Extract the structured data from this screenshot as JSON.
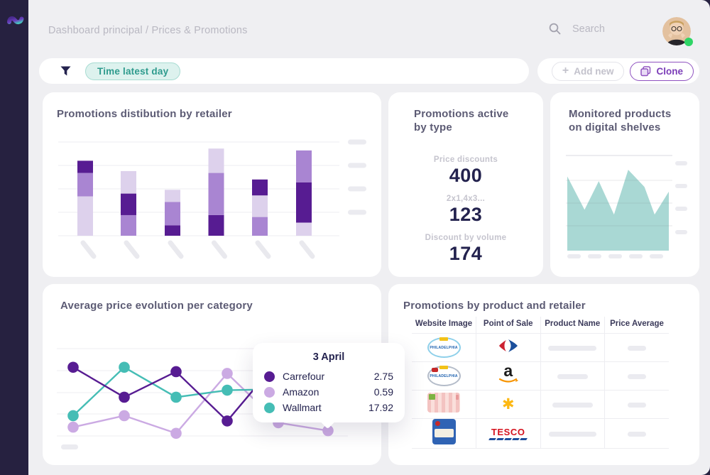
{
  "header": {
    "breadcrumb": "Dashboard principal / Prices & Promotions",
    "search_label": "Search"
  },
  "filter_bar": {
    "chip_label": "Time latest day"
  },
  "actions": {
    "add_new_label": "Add new",
    "clone_label": "Clone"
  },
  "colors": {
    "sidebar_bg": "#262140",
    "content_bg": "#efeff2",
    "dark_purple": "#571c92",
    "medium_purple": "#a985d2",
    "light_purple": "#ddd1ec",
    "amazon_line": "#cbaae3",
    "teal_line": "#45bdb5",
    "area_teal": "#a9d8d4",
    "accent_purple": "#7b3db8",
    "chip_bg": "#ddf2ee",
    "chip_border": "#a8dcd2",
    "chip_text": "#2e9b8d",
    "navy_text": "#23224e",
    "skeleton": "#ebebf0",
    "grid": "#f1f0f4",
    "status_green": "#2fd566"
  },
  "cards": {
    "bar_card": {
      "title": "Promotions distibution by retailer"
    },
    "kpi_card": {
      "title": "Promotions active\nby type",
      "metrics": [
        {
          "label": "Price discounts",
          "value": "400"
        },
        {
          "label": "2x1,4x3...",
          "value": "123"
        },
        {
          "label": "Discount by volume",
          "value": "174"
        }
      ]
    },
    "area_card": {
      "title": "Monitored products\non digital shelves"
    },
    "line_card": {
      "title": "Average price evolution per category"
    },
    "table_card": {
      "title": "Promotions by product and retailer"
    }
  },
  "chart_data": [
    {
      "type": "bar",
      "stacked": true,
      "title": "Promotions distibution by retailer",
      "ylim": [
        0,
        100
      ],
      "x_axis_labels": "skeleton-placeholders",
      "y_axis_labels": "skeleton-placeholders",
      "tone_colors": {
        "dark": "#571c92",
        "medium": "#a985d2",
        "light": "#ddd1ec"
      },
      "bars": [
        {
          "segments": [
            {
              "tone": "light",
              "value": 42
            },
            {
              "tone": "medium",
              "value": 25
            },
            {
              "tone": "dark",
              "value": 13
            }
          ]
        },
        {
          "segments": [
            {
              "tone": "medium",
              "value": 22
            },
            {
              "tone": "dark",
              "value": 23
            },
            {
              "tone": "light",
              "value": 24
            }
          ]
        },
        {
          "segments": [
            {
              "tone": "dark",
              "value": 11
            },
            {
              "tone": "medium",
              "value": 25
            },
            {
              "tone": "light",
              "value": 13
            }
          ]
        },
        {
          "segments": [
            {
              "tone": "dark",
              "value": 22
            },
            {
              "tone": "medium",
              "value": 45
            },
            {
              "tone": "light",
              "value": 26
            }
          ]
        },
        {
          "segments": [
            {
              "tone": "medium",
              "value": 20
            },
            {
              "tone": "light",
              "value": 23
            },
            {
              "tone": "dark",
              "value": 17
            }
          ]
        },
        {
          "segments": [
            {
              "tone": "light",
              "value": 14
            },
            {
              "tone": "dark",
              "value": 43
            },
            {
              "tone": "medium",
              "value": 34
            }
          ]
        }
      ]
    },
    {
      "type": "area",
      "title": "Monitored products on digital shelves",
      "fill": "#a9d8d4",
      "ylim": [
        0,
        100
      ],
      "x": [
        0,
        17,
        31,
        46,
        60,
        76,
        86,
        100
      ],
      "values": [
        78,
        43,
        73,
        38,
        85,
        67,
        38,
        62
      ],
      "x_axis_labels": "skeleton-placeholders",
      "y_axis_labels": "skeleton-placeholders"
    },
    {
      "type": "line",
      "title": "Average price evolution per category",
      "ylim": [
        0,
        100
      ],
      "points_per_series": 6,
      "series": [
        {
          "name": "Carrefour",
          "color": "#571c92",
          "values": [
            78,
            44,
            73,
            17,
            86,
            50
          ]
        },
        {
          "name": "Amazon",
          "color": "#cbaae3",
          "values": [
            10,
            23,
            3,
            71,
            15,
            6
          ]
        },
        {
          "name": "Wallmart",
          "color": "#45bdb5",
          "values": [
            23,
            78,
            44,
            52,
            53,
            50
          ]
        }
      ],
      "hovered_point": {
        "index": 5,
        "label": "3 April"
      }
    }
  ],
  "tooltip": {
    "title": "3 April",
    "rows": [
      {
        "name": "Carrefour",
        "value": "2.75",
        "color": "#571c92"
      },
      {
        "name": "Amazon",
        "value": "0.59",
        "color": "#cbaae3"
      },
      {
        "name": "Wallmart",
        "value": "17.92",
        "color": "#45bdb5"
      }
    ]
  },
  "table": {
    "columns": [
      "Website Image",
      "Point of Sale",
      "Product Name",
      "Price Average"
    ],
    "brand_text": {
      "philadelphia": "PHILADELPHIA",
      "amazon": "a",
      "tesco": "TESCO",
      "walmart_spark": "✱"
    },
    "rows": [
      {
        "website_image": "philadelphia-blue",
        "point_of_sale": "carrefour",
        "product_name": "skeleton",
        "price_average": "skeleton",
        "skeleton_widths": [
          68,
          26
        ]
      },
      {
        "website_image": "philadelphia-gray",
        "point_of_sale": "amazon",
        "product_name": "skeleton",
        "price_average": "skeleton",
        "skeleton_widths": [
          43,
          26
        ]
      },
      {
        "website_image": "bacon-pack",
        "point_of_sale": "walmart",
        "product_name": "skeleton",
        "price_average": "skeleton",
        "skeleton_widths": [
          57,
          26
        ]
      },
      {
        "website_image": "cheese-pack",
        "point_of_sale": "tesco",
        "product_name": "skeleton",
        "price_average": "skeleton",
        "skeleton_widths": [
          67,
          26
        ]
      }
    ]
  }
}
